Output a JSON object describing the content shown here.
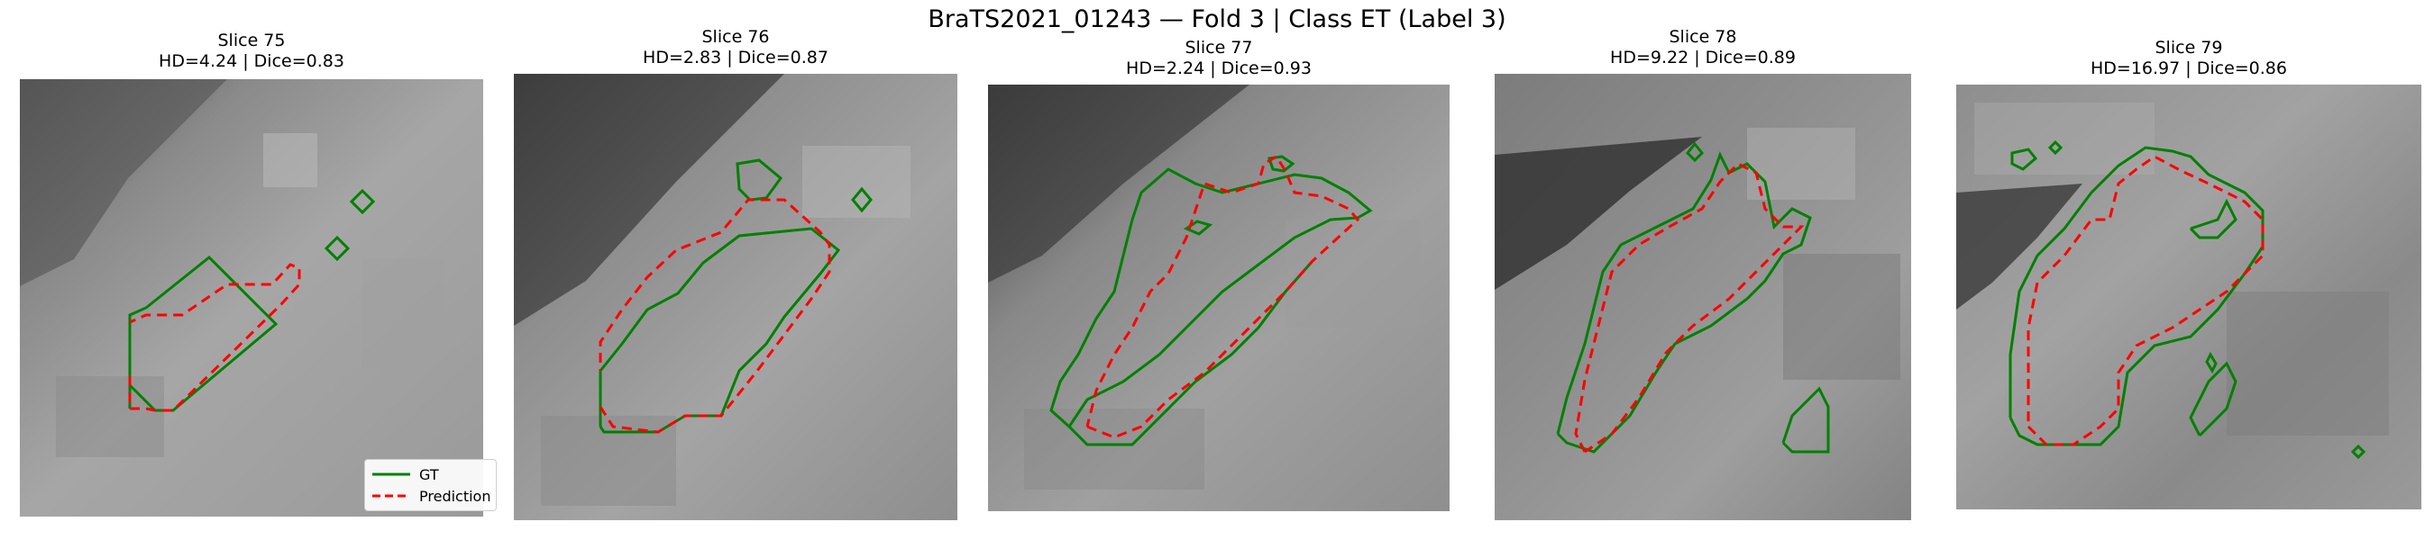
{
  "figure": {
    "title": "BraTS2021_01243 — Fold 3 | Class ET (Label 3)"
  },
  "colors": {
    "gt": "#008000",
    "prediction": "#ff0000",
    "background": "#ffffff"
  },
  "legend": {
    "gt_label": "GT",
    "prediction_label": "Prediction"
  },
  "panels": [
    {
      "slice": "Slice 75",
      "metrics": "HD=4.24 | Dice=0.83"
    },
    {
      "slice": "Slice 76",
      "metrics": "HD=2.83 | Dice=0.87"
    },
    {
      "slice": "Slice 77",
      "metrics": "HD=2.24 | Dice=0.93"
    },
    {
      "slice": "Slice 78",
      "metrics": "HD=9.22 | Dice=0.89"
    },
    {
      "slice": "Slice 79",
      "metrics": "HD=16.97 | Dice=0.86"
    }
  ]
}
